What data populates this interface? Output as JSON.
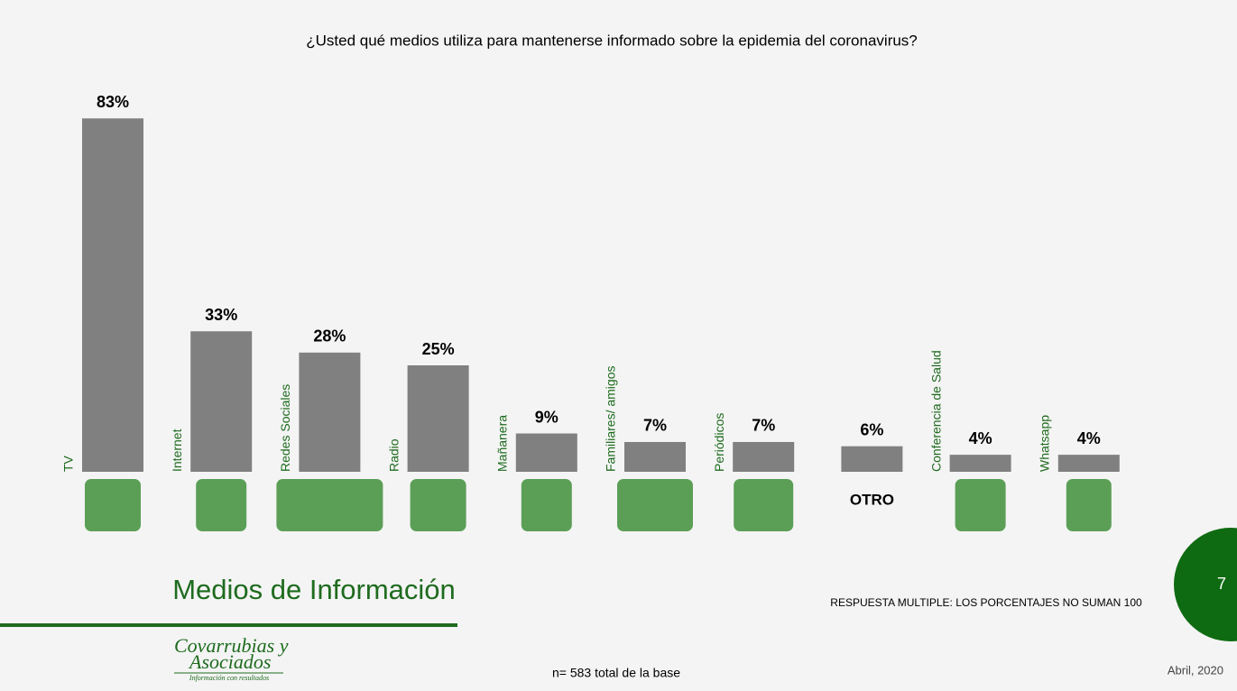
{
  "chart_data": {
    "type": "bar",
    "title": "¿Usted qué medios utiliza para mantenerse informado sobre la epidemia del coronavirus?",
    "categories": [
      "TV",
      "Internet",
      "Redes Sociales",
      "Radio",
      "Mañanera",
      "Familiares/ amigos",
      "Periódicos",
      "OTRO",
      "Conferencia de Salud",
      "Whatsapp"
    ],
    "values": [
      83,
      33,
      28,
      25,
      9,
      7,
      7,
      6,
      4,
      4
    ],
    "value_labels": [
      "83%",
      "33%",
      "28%",
      "25%",
      "9%",
      "7%",
      "7%",
      "6%",
      "4%",
      "4%"
    ],
    "color": "#808080"
  },
  "section_title": "Medios de Información",
  "note": "RESPUESTA MULTIPLE: LOS PORCENTAJES NO SUMAN 100",
  "sample": "n= 583 total de la base",
  "date": "Abril, 2020",
  "page_number": "7",
  "logo": {
    "line1": "Covarrubias y",
    "line2": "Asociados",
    "tagline": "Información con resultados"
  }
}
